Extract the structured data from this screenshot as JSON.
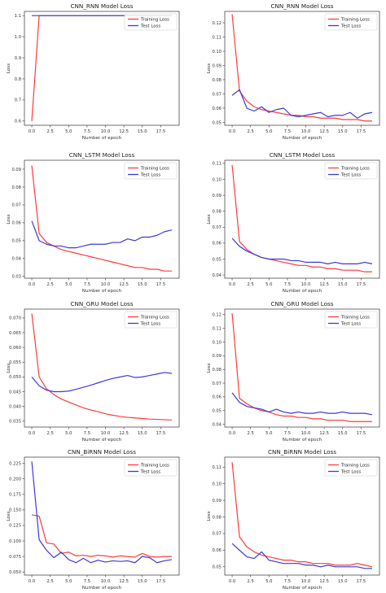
{
  "chart_data": [
    {
      "type": "line",
      "title": "CNN_RNN Model Loss",
      "xlabel": "Number of epoch",
      "ylabel": "Loss",
      "xlim": [
        -1,
        20
      ],
      "ylim": [
        0.58,
        1.12
      ],
      "xticks": [
        0,
        2.5,
        5,
        7.5,
        10,
        12.5,
        15,
        17.5
      ],
      "xtick_labels": [
        "0.0",
        "2.5",
        "5.0",
        "7.5",
        "10.0",
        "12.5",
        "15.0",
        "17.5"
      ],
      "yticks": [
        0.6,
        0.7,
        0.8,
        0.9,
        1.0,
        1.1
      ],
      "ytick_labels": [
        "0.6",
        "0.7",
        "0.8",
        "0.9",
        "1.0",
        "1.1"
      ],
      "legend": "top-right",
      "x": [
        0,
        1,
        2,
        3,
        4,
        5,
        6,
        7,
        8,
        9,
        10,
        11,
        12,
        13,
        14,
        15,
        16,
        17,
        18,
        19
      ],
      "series": [
        {
          "name": "Training Loss",
          "color": "#ff3b3b",
          "values": [
            0.6,
            1.1,
            1.1,
            1.1,
            1.1,
            1.1,
            1.1,
            1.1,
            1.1,
            1.1,
            1.1,
            1.1,
            1.1,
            1.1,
            1.1,
            1.1,
            1.1,
            1.1,
            1.1,
            1.1
          ]
        },
        {
          "name": "Test Loss",
          "color": "#3b3bd6",
          "values": [
            1.1,
            1.1,
            1.1,
            1.1,
            1.1,
            1.1,
            1.1,
            1.1,
            1.1,
            1.1,
            1.1,
            1.1,
            1.1,
            1.1,
            1.1,
            1.1,
            1.1,
            1.1,
            1.1,
            1.1
          ]
        }
      ]
    },
    {
      "type": "line",
      "title": "CNN_RNN Model Loss",
      "xlabel": "Number of epoch",
      "ylabel": "Loss",
      "xlim": [
        -1,
        20
      ],
      "ylim": [
        0.048,
        0.128
      ],
      "xticks": [
        0,
        2.5,
        5,
        7.5,
        10,
        12.5,
        15,
        17.5
      ],
      "xtick_labels": [
        "0.0",
        "2.5",
        "5.0",
        "7.5",
        "10.0",
        "12.5",
        "15.0",
        "17.5"
      ],
      "yticks": [
        0.05,
        0.06,
        0.07,
        0.08,
        0.09,
        0.1,
        0.11,
        0.12
      ],
      "ytick_labels": [
        "0.05",
        "0.06",
        "0.07",
        "0.08",
        "0.09",
        "0.10",
        "0.11",
        "0.12"
      ],
      "legend": "top-right",
      "x": [
        0,
        1,
        2,
        3,
        4,
        5,
        6,
        7,
        8,
        9,
        10,
        11,
        12,
        13,
        14,
        15,
        16,
        17,
        18,
        19
      ],
      "series": [
        {
          "name": "Training Loss",
          "color": "#ff3b3b",
          "values": [
            0.126,
            0.072,
            0.065,
            0.061,
            0.059,
            0.058,
            0.057,
            0.056,
            0.055,
            0.055,
            0.054,
            0.054,
            0.053,
            0.053,
            0.053,
            0.052,
            0.052,
            0.052,
            0.051,
            0.051
          ]
        },
        {
          "name": "Test Loss",
          "color": "#3b3bd6",
          "values": [
            0.069,
            0.073,
            0.06,
            0.058,
            0.061,
            0.057,
            0.059,
            0.06,
            0.055,
            0.054,
            0.055,
            0.056,
            0.057,
            0.054,
            0.055,
            0.055,
            0.057,
            0.053,
            0.056,
            0.057
          ]
        }
      ]
    },
    {
      "type": "line",
      "title": "CNN_LSTM Model Loss",
      "xlabel": "Number of epoch",
      "ylabel": "Loss",
      "xlim": [
        -1,
        20
      ],
      "ylim": [
        0.029,
        0.095
      ],
      "xticks": [
        0,
        2.5,
        5,
        7.5,
        10,
        12.5,
        15,
        17.5
      ],
      "xtick_labels": [
        "0.0",
        "2.5",
        "5.0",
        "7.5",
        "10.0",
        "12.5",
        "15.0",
        "17.5"
      ],
      "yticks": [
        0.03,
        0.04,
        0.05,
        0.06,
        0.07,
        0.08,
        0.09
      ],
      "ytick_labels": [
        "0.03",
        "0.04",
        "0.05",
        "0.06",
        "0.07",
        "0.08",
        "0.09"
      ],
      "legend": "top-right",
      "x": [
        0,
        1,
        2,
        3,
        4,
        5,
        6,
        7,
        8,
        9,
        10,
        11,
        12,
        13,
        14,
        15,
        16,
        17,
        18,
        19
      ],
      "series": [
        {
          "name": "Training Loss",
          "color": "#ff3b3b",
          "values": [
            0.092,
            0.054,
            0.049,
            0.047,
            0.045,
            0.044,
            0.043,
            0.042,
            0.041,
            0.04,
            0.039,
            0.038,
            0.037,
            0.036,
            0.035,
            0.035,
            0.034,
            0.034,
            0.033,
            0.033
          ]
        },
        {
          "name": "Test Loss",
          "color": "#3b3bd6",
          "values": [
            0.061,
            0.05,
            0.048,
            0.047,
            0.047,
            0.046,
            0.046,
            0.047,
            0.048,
            0.048,
            0.048,
            0.049,
            0.049,
            0.051,
            0.05,
            0.052,
            0.052,
            0.053,
            0.055,
            0.056
          ]
        }
      ]
    },
    {
      "type": "line",
      "title": "CNN_LSTM Model Loss",
      "xlabel": "Number of epoch",
      "ylabel": "Loss",
      "xlim": [
        -1,
        20
      ],
      "ylim": [
        0.038,
        0.112
      ],
      "xticks": [
        0,
        2.5,
        5,
        7.5,
        10,
        12.5,
        15,
        17.5
      ],
      "xtick_labels": [
        "0.0",
        "2.5",
        "5.0",
        "7.5",
        "10.0",
        "12.5",
        "15.0",
        "17.5"
      ],
      "yticks": [
        0.04,
        0.05,
        0.06,
        0.07,
        0.08,
        0.09,
        0.1,
        0.11
      ],
      "ytick_labels": [
        "0.04",
        "0.05",
        "0.06",
        "0.07",
        "0.08",
        "0.09",
        "0.10",
        "0.11"
      ],
      "legend": "top-right",
      "x": [
        0,
        1,
        2,
        3,
        4,
        5,
        6,
        7,
        8,
        9,
        10,
        11,
        12,
        13,
        14,
        15,
        16,
        17,
        18,
        19
      ],
      "series": [
        {
          "name": "Training Loss",
          "color": "#ff3b3b",
          "values": [
            0.109,
            0.061,
            0.056,
            0.053,
            0.051,
            0.05,
            0.049,
            0.048,
            0.047,
            0.046,
            0.046,
            0.045,
            0.045,
            0.044,
            0.044,
            0.043,
            0.043,
            0.043,
            0.042,
            0.042
          ]
        },
        {
          "name": "Test Loss",
          "color": "#3b3bd6",
          "values": [
            0.063,
            0.058,
            0.055,
            0.053,
            0.051,
            0.05,
            0.05,
            0.05,
            0.049,
            0.049,
            0.048,
            0.048,
            0.048,
            0.047,
            0.048,
            0.047,
            0.047,
            0.047,
            0.048,
            0.047
          ]
        }
      ]
    },
    {
      "type": "line",
      "title": "CNN_GRU Model Loss",
      "xlabel": "Number of epoch",
      "ylabel": "Loss",
      "xlim": [
        -1,
        20
      ],
      "ylim": [
        0.033,
        0.073
      ],
      "xticks": [
        0,
        2.5,
        5,
        7.5,
        10,
        12.5,
        15,
        17.5
      ],
      "xtick_labels": [
        "0.0",
        "2.5",
        "5.0",
        "7.5",
        "10.0",
        "12.5",
        "15.0",
        "17.5"
      ],
      "yticks": [
        0.035,
        0.04,
        0.045,
        0.05,
        0.055,
        0.06,
        0.065,
        0.07
      ],
      "ytick_labels": [
        "0.035",
        "0.040",
        "0.045",
        "0.050",
        "0.055",
        "0.060",
        "0.065",
        "0.070"
      ],
      "legend": "top-right",
      "x": [
        0,
        1,
        2,
        3,
        4,
        5,
        6,
        7,
        8,
        9,
        10,
        11,
        12,
        13,
        14,
        15,
        16,
        17,
        18,
        19
      ],
      "series": [
        {
          "name": "Training Loss",
          "color": "#ff3b3b",
          "values": [
            0.0715,
            0.05,
            0.046,
            0.044,
            0.0425,
            0.0415,
            0.0405,
            0.0395,
            0.0388,
            0.0382,
            0.0375,
            0.037,
            0.0366,
            0.0363,
            0.0361,
            0.0359,
            0.0357,
            0.0356,
            0.0355,
            0.0354
          ]
        },
        {
          "name": "Test Loss",
          "color": "#3b3bd6",
          "values": [
            0.05,
            0.047,
            0.0455,
            0.045,
            0.045,
            0.0452,
            0.0458,
            0.0465,
            0.0472,
            0.048,
            0.0488,
            0.0495,
            0.05,
            0.0505,
            0.0498,
            0.05,
            0.0505,
            0.051,
            0.0515,
            0.0512
          ]
        }
      ]
    },
    {
      "type": "line",
      "title": "CNN_GRU Model Loss",
      "xlabel": "Number of epoch",
      "ylabel": "Loss",
      "xlim": [
        -1,
        20
      ],
      "ylim": [
        0.038,
        0.124
      ],
      "xticks": [
        0,
        2.5,
        5,
        7.5,
        10,
        12.5,
        15,
        17.5
      ],
      "xtick_labels": [
        "0.0",
        "2.5",
        "5.0",
        "7.5",
        "10.0",
        "12.5",
        "15.0",
        "17.5"
      ],
      "yticks": [
        0.04,
        0.05,
        0.06,
        0.07,
        0.08,
        0.09,
        0.1,
        0.11,
        0.12
      ],
      "ytick_labels": [
        "0.04",
        "0.05",
        "0.06",
        "0.07",
        "0.08",
        "0.09",
        "0.10",
        "0.11",
        "0.12"
      ],
      "legend": "top-right",
      "x": [
        0,
        1,
        2,
        3,
        4,
        5,
        6,
        7,
        8,
        9,
        10,
        11,
        12,
        13,
        14,
        15,
        16,
        17,
        18,
        19
      ],
      "series": [
        {
          "name": "Training Loss",
          "color": "#ff3b3b",
          "values": [
            0.121,
            0.059,
            0.055,
            0.052,
            0.05,
            0.049,
            0.047,
            0.046,
            0.046,
            0.045,
            0.045,
            0.044,
            0.044,
            0.043,
            0.043,
            0.043,
            0.042,
            0.042,
            0.042,
            0.042
          ]
        },
        {
          "name": "Test Loss",
          "color": "#3b3bd6",
          "values": [
            0.063,
            0.056,
            0.053,
            0.052,
            0.051,
            0.049,
            0.051,
            0.049,
            0.048,
            0.049,
            0.048,
            0.048,
            0.049,
            0.048,
            0.048,
            0.049,
            0.048,
            0.048,
            0.048,
            0.047
          ]
        }
      ]
    },
    {
      "type": "line",
      "title": "CNN_BiRNN Model Loss",
      "xlabel": "Number of epoch",
      "ylabel": "Loss",
      "xlim": [
        -1,
        20
      ],
      "ylim": [
        0.045,
        0.235
      ],
      "xticks": [
        0,
        2.5,
        5,
        7.5,
        10,
        12.5,
        15,
        17.5
      ],
      "xtick_labels": [
        "0.0",
        "2.5",
        "5.0",
        "7.5",
        "10.0",
        "12.5",
        "15.0",
        "17.5"
      ],
      "yticks": [
        0.05,
        0.075,
        0.1,
        0.125,
        0.15,
        0.175,
        0.2,
        0.225
      ],
      "ytick_labels": [
        "0.050",
        "0.075",
        "0.100",
        "0.125",
        "0.150",
        "0.175",
        "0.200",
        "0.225"
      ],
      "legend": "top-right",
      "x": [
        0,
        1,
        2,
        3,
        4,
        5,
        6,
        7,
        8,
        9,
        10,
        11,
        12,
        13,
        14,
        15,
        16,
        17,
        18,
        19
      ],
      "series": [
        {
          "name": "Training Loss",
          "color": "#ff3b3b",
          "values": [
            0.142,
            0.14,
            0.097,
            0.095,
            0.08,
            0.082,
            0.076,
            0.077,
            0.075,
            0.077,
            0.076,
            0.074,
            0.076,
            0.075,
            0.074,
            0.08,
            0.075,
            0.074,
            0.075,
            0.075
          ]
        },
        {
          "name": "Test Loss",
          "color": "#3b3bd6",
          "values": [
            0.228,
            0.102,
            0.085,
            0.073,
            0.082,
            0.07,
            0.065,
            0.072,
            0.065,
            0.069,
            0.066,
            0.068,
            0.067,
            0.068,
            0.065,
            0.075,
            0.073,
            0.065,
            0.068,
            0.07
          ]
        }
      ]
    },
    {
      "type": "line",
      "title": "CNN_BiRNN Model Loss",
      "xlabel": "Number of epoch",
      "ylabel": "Loss",
      "xlim": [
        -1,
        20
      ],
      "ylim": [
        0.045,
        0.116
      ],
      "xticks": [
        0,
        2.5,
        5,
        7.5,
        10,
        12.5,
        15,
        17.5
      ],
      "xtick_labels": [
        "0.0",
        "2.5",
        "5.0",
        "7.5",
        "10.0",
        "12.5",
        "15.0",
        "17.5"
      ],
      "yticks": [
        0.05,
        0.06,
        0.07,
        0.08,
        0.09,
        0.1,
        0.11
      ],
      "ytick_labels": [
        "0.05",
        "0.06",
        "0.07",
        "0.08",
        "0.09",
        "0.10",
        "0.11"
      ],
      "legend": "top-right",
      "x": [
        0,
        1,
        2,
        3,
        4,
        5,
        6,
        7,
        8,
        9,
        10,
        11,
        12,
        13,
        14,
        15,
        16,
        17,
        18,
        19
      ],
      "series": [
        {
          "name": "Training Loss",
          "color": "#ff3b3b",
          "values": [
            0.113,
            0.068,
            0.062,
            0.059,
            0.057,
            0.056,
            0.055,
            0.054,
            0.054,
            0.053,
            0.053,
            0.052,
            0.052,
            0.052,
            0.051,
            0.051,
            0.051,
            0.052,
            0.051,
            0.05
          ]
        },
        {
          "name": "Test Loss",
          "color": "#3b3bd6",
          "values": [
            0.064,
            0.06,
            0.056,
            0.055,
            0.059,
            0.054,
            0.053,
            0.052,
            0.052,
            0.052,
            0.051,
            0.051,
            0.05,
            0.051,
            0.05,
            0.05,
            0.05,
            0.05,
            0.049,
            0.049
          ]
        }
      ]
    }
  ]
}
